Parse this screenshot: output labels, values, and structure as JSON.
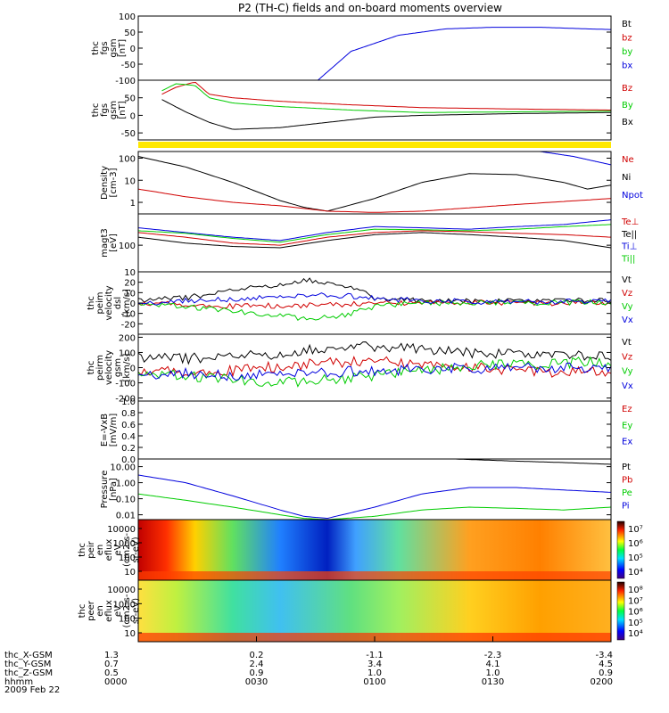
{
  "title": "P2 (TH-C) fields and on-board moments overview",
  "date_label": "2009 Feb 22",
  "colors": {
    "black": "#000000",
    "red": "#d00000",
    "green": "#00cc00",
    "blue": "#0000dd",
    "yellow": "#ffe800"
  },
  "chart_data": [
    {
      "type": "line",
      "ylabel": [
        "thc",
        "fgs",
        "gsm",
        "[nT]"
      ],
      "yticks": [
        "100",
        "50",
        "0",
        "-50",
        "-100"
      ],
      "ylim": [
        -100,
        100
      ],
      "legend": [
        "Bt",
        "bz",
        "by",
        "bx"
      ],
      "legend_colors": [
        "black",
        "red",
        "green",
        "blue"
      ],
      "series": [
        {
          "name": "bx",
          "color": "blue",
          "x": [
            0.38,
            0.45,
            0.55,
            0.65,
            0.75,
            0.85,
            0.95,
            1.0
          ],
          "y": [
            -100,
            -10,
            40,
            60,
            65,
            65,
            60,
            58
          ]
        }
      ]
    },
    {
      "type": "line",
      "ylabel": [
        "thc",
        "fgs",
        "gsm",
        "[nT]"
      ],
      "yticks": [
        "50",
        "0",
        "-50"
      ],
      "ylim": [
        -70,
        100
      ],
      "legend": [
        "Bz",
        "By",
        "Bx"
      ],
      "legend_colors": [
        "red",
        "green",
        "black"
      ],
      "series": [
        {
          "name": "Bz",
          "color": "red",
          "x": [
            0.05,
            0.08,
            0.12,
            0.15,
            0.2,
            0.3,
            0.45,
            0.6,
            0.8,
            1.0
          ],
          "y": [
            60,
            80,
            95,
            60,
            50,
            40,
            30,
            22,
            18,
            15
          ]
        },
        {
          "name": "By",
          "color": "green",
          "x": [
            0.05,
            0.08,
            0.12,
            0.15,
            0.2,
            0.3,
            0.45,
            0.6,
            0.8,
            1.0
          ],
          "y": [
            70,
            90,
            85,
            50,
            35,
            25,
            15,
            8,
            10,
            12
          ]
        },
        {
          "name": "Bx",
          "color": "black",
          "x": [
            0.05,
            0.1,
            0.15,
            0.2,
            0.3,
            0.4,
            0.5,
            0.6,
            0.8,
            1.0
          ],
          "y": [
            45,
            10,
            -20,
            -40,
            -35,
            -20,
            -5,
            0,
            5,
            8
          ]
        }
      ]
    },
    {
      "type": "line",
      "ylabel": [
        "Density",
        "[cm-3]"
      ],
      "yticks": [
        "100",
        "10",
        "1"
      ],
      "ylog": true,
      "ylim": [
        0.3,
        200
      ],
      "legend": [
        "Ne",
        "Ni",
        "Npot"
      ],
      "legend_colors": [
        "red",
        "black",
        "blue"
      ],
      "series": [
        {
          "name": "Ni",
          "color": "black",
          "x": [
            0,
            0.1,
            0.2,
            0.3,
            0.35,
            0.4,
            0.5,
            0.6,
            0.7,
            0.8,
            0.9,
            0.95,
            1.0
          ],
          "y": [
            120,
            40,
            8,
            1.2,
            0.6,
            0.4,
            1.5,
            8,
            20,
            18,
            8,
            4,
            6
          ]
        },
        {
          "name": "Ne",
          "color": "red",
          "x": [
            0,
            0.1,
            0.2,
            0.3,
            0.4,
            0.5,
            0.6,
            0.8,
            1.0
          ],
          "y": [
            4,
            1.8,
            1,
            0.7,
            0.4,
            0.35,
            0.4,
            0.8,
            1.5
          ]
        },
        {
          "name": "Npot",
          "color": "blue",
          "x": [
            0.85,
            0.92,
            1.0
          ],
          "y": [
            200,
            120,
            50
          ]
        }
      ]
    },
    {
      "type": "line",
      "ylabel": [
        "magt3",
        "[eV]"
      ],
      "yticks": [
        "100",
        "10"
      ],
      "ylog": true,
      "ylim": [
        10,
        1500
      ],
      "legend": [
        "Te⊥",
        "Te||",
        "Ti⊥",
        "Ti||"
      ],
      "legend_colors": [
        "red",
        "black",
        "blue",
        "green"
      ],
      "series": [
        {
          "name": "Ti⊥",
          "color": "blue",
          "x": [
            0,
            0.1,
            0.2,
            0.3,
            0.4,
            0.5,
            0.6,
            0.7,
            0.8,
            0.9,
            1.0
          ],
          "y": [
            450,
            300,
            200,
            150,
            300,
            500,
            450,
            400,
            500,
            600,
            900
          ]
        },
        {
          "name": "Ti||",
          "color": "green",
          "x": [
            0,
            0.1,
            0.2,
            0.3,
            0.4,
            0.5,
            0.6,
            0.7,
            0.8,
            0.9,
            1.0
          ],
          "y": [
            350,
            280,
            180,
            130,
            250,
            400,
            380,
            350,
            400,
            500,
            600
          ]
        },
        {
          "name": "Te⊥",
          "color": "red",
          "x": [
            0,
            0.1,
            0.2,
            0.3,
            0.4,
            0.5,
            0.6,
            0.7,
            0.8,
            0.9,
            1.0
          ],
          "y": [
            300,
            200,
            120,
            100,
            200,
            300,
            350,
            320,
            280,
            250,
            200
          ]
        },
        {
          "name": "Te||",
          "color": "black",
          "x": [
            0,
            0.1,
            0.2,
            0.3,
            0.4,
            0.5,
            0.6,
            0.7,
            0.8,
            0.9,
            1.0
          ],
          "y": [
            200,
            120,
            90,
            80,
            150,
            250,
            300,
            250,
            200,
            150,
            80
          ]
        }
      ]
    },
    {
      "type": "line",
      "ylabel": [
        "thc",
        "peim",
        "velocity",
        "dsl",
        "[km/s]"
      ],
      "yticks": [
        "20",
        "10",
        "0",
        "-10",
        "-20"
      ],
      "ylim": [
        -30,
        30
      ],
      "legend": [
        "Vt",
        "Vz",
        "Vy",
        "Vx"
      ],
      "legend_colors": [
        "black",
        "red",
        "green",
        "blue"
      ],
      "series": [
        {
          "name": "Vt",
          "color": "black",
          "x": [
            0,
            0.1,
            0.2,
            0.3,
            0.35,
            0.4,
            0.45,
            0.5,
            0.6,
            0.8,
            1.0
          ],
          "y": [
            2,
            5,
            12,
            18,
            22,
            20,
            15,
            5,
            2,
            2,
            3
          ]
        },
        {
          "name": "Vz",
          "color": "red",
          "x": [
            0,
            0.2,
            0.4,
            0.6,
            0.8,
            1.0
          ],
          "y": [
            0,
            -3,
            -2,
            1,
            0,
            0
          ]
        },
        {
          "name": "Vy",
          "color": "green",
          "x": [
            0,
            0.1,
            0.2,
            0.3,
            0.35,
            0.4,
            0.45,
            0.5,
            0.6,
            0.8,
            1.0
          ],
          "y": [
            0,
            -3,
            -8,
            -12,
            -15,
            -14,
            -10,
            -3,
            0,
            0,
            1
          ]
        },
        {
          "name": "Vx",
          "color": "blue",
          "x": [
            0,
            0.2,
            0.4,
            0.6,
            0.8,
            1.0
          ],
          "y": [
            0,
            4,
            8,
            2,
            1,
            2
          ]
        }
      ]
    },
    {
      "type": "line",
      "ylabel": [
        "thc",
        "peirm",
        "velocity",
        "gsm",
        "[km/s]"
      ],
      "yticks": [
        "200",
        "100",
        "0",
        "-100",
        "-200"
      ],
      "ylim": [
        -220,
        220
      ],
      "legend": [
        "Vt",
        "Vz",
        "Vy",
        "Vx"
      ],
      "legend_colors": [
        "black",
        "red",
        "green",
        "blue"
      ],
      "series": [
        {
          "name": "Vt",
          "color": "black",
          "x": [
            0,
            0.1,
            0.2,
            0.3,
            0.4,
            0.5,
            0.6,
            0.7,
            0.8,
            0.9,
            1.0
          ],
          "y": [
            60,
            60,
            70,
            90,
            130,
            140,
            120,
            100,
            90,
            80,
            80
          ]
        },
        {
          "name": "Vz",
          "color": "red",
          "x": [
            0,
            0.1,
            0.2,
            0.3,
            0.4,
            0.5,
            0.6,
            0.7,
            0.8,
            0.9,
            1.0
          ],
          "y": [
            -20,
            -30,
            -20,
            10,
            30,
            40,
            30,
            0,
            -20,
            -30,
            -30
          ]
        },
        {
          "name": "Vy",
          "color": "green",
          "x": [
            0,
            0.1,
            0.2,
            0.3,
            0.4,
            0.5,
            0.6,
            0.7,
            0.8,
            0.9,
            1.0
          ],
          "y": [
            -30,
            -50,
            -80,
            -100,
            -80,
            -50,
            -20,
            10,
            20,
            30,
            40
          ]
        },
        {
          "name": "Vx",
          "color": "blue",
          "x": [
            0,
            0.1,
            0.2,
            0.3,
            0.4,
            0.5,
            0.6,
            0.7,
            0.8,
            0.9,
            1.0
          ],
          "y": [
            -40,
            -40,
            -50,
            -40,
            -30,
            -20,
            -10,
            -5,
            0,
            0,
            -10
          ]
        }
      ]
    },
    {
      "type": "line",
      "ylabel": [
        "E=-VxB",
        "[mV/m]"
      ],
      "yticks": [
        "1.0",
        "0.8",
        "0.6",
        "0.4",
        "0.2",
        "0.0"
      ],
      "ylim": [
        0,
        1
      ],
      "legend": [
        "Ez",
        "Ey",
        "Ex"
      ],
      "legend_colors": [
        "red",
        "green",
        "blue"
      ],
      "series": []
    },
    {
      "type": "line",
      "ylabel": [
        "Pressure",
        "[nPa]"
      ],
      "yticks": [
        "10.00",
        "1.00",
        "0.10",
        "0.01"
      ],
      "ylog": true,
      "ylim": [
        0.005,
        30
      ],
      "legend": [
        "Pt",
        "Pb",
        "Pe",
        "Pi"
      ],
      "legend_colors": [
        "black",
        "red",
        "green",
        "blue"
      ],
      "series": [
        {
          "name": "Pi",
          "color": "blue",
          "x": [
            0,
            0.1,
            0.2,
            0.3,
            0.35,
            0.4,
            0.5,
            0.6,
            0.7,
            0.8,
            0.9,
            1.0
          ],
          "y": [
            3,
            1,
            0.15,
            0.02,
            0.008,
            0.006,
            0.03,
            0.2,
            0.5,
            0.5,
            0.35,
            0.25
          ]
        },
        {
          "name": "Pe",
          "color": "green",
          "x": [
            0,
            0.1,
            0.2,
            0.3,
            0.35,
            0.4,
            0.5,
            0.6,
            0.7,
            0.8,
            0.9,
            1.0
          ],
          "y": [
            0.2,
            0.08,
            0.03,
            0.01,
            0.006,
            0.005,
            0.008,
            0.02,
            0.03,
            0.025,
            0.02,
            0.03
          ]
        },
        {
          "name": "Pt",
          "color": "black",
          "x": [
            0.67,
            0.8,
            0.9,
            1.0
          ],
          "y": [
            30,
            22,
            18,
            14
          ]
        }
      ]
    },
    {
      "type": "heatmap",
      "ylabel": [
        "thc",
        "peir",
        "en",
        "eflux",
        "eV",
        "(cm2-s-",
        "sr-eV)"
      ],
      "yticks": [
        "10000",
        "1000",
        "100",
        "10"
      ],
      "colorbar_ticks": [
        "10⁷",
        "10⁶",
        "10⁵",
        "10⁴"
      ]
    },
    {
      "type": "heatmap",
      "ylabel": [
        "thc",
        "peer",
        "en",
        "eflux",
        "eV",
        "(cm2-s-",
        "sr-eV)"
      ],
      "yticks": [
        "10000",
        "1000",
        "100",
        "10"
      ],
      "colorbar_ticks": [
        "10⁸",
        "10⁷",
        "10⁶",
        "10⁵",
        "10⁴"
      ]
    }
  ],
  "axis_rows": [
    {
      "label": "thc_X-GSM",
      "values": [
        "1.3",
        "0.2",
        "-1.1",
        "-2.3",
        "-3.4"
      ]
    },
    {
      "label": "thc_Y-GSM",
      "values": [
        "0.7",
        "2.4",
        "3.4",
        "4.1",
        "4.5"
      ]
    },
    {
      "label": "thc_Z-GSM",
      "values": [
        "0.5",
        "0.9",
        "1.0",
        "1.0",
        "0.9"
      ]
    },
    {
      "label": "hhmm",
      "values": [
        "0000",
        "0030",
        "0100",
        "0130",
        "0200"
      ]
    }
  ]
}
